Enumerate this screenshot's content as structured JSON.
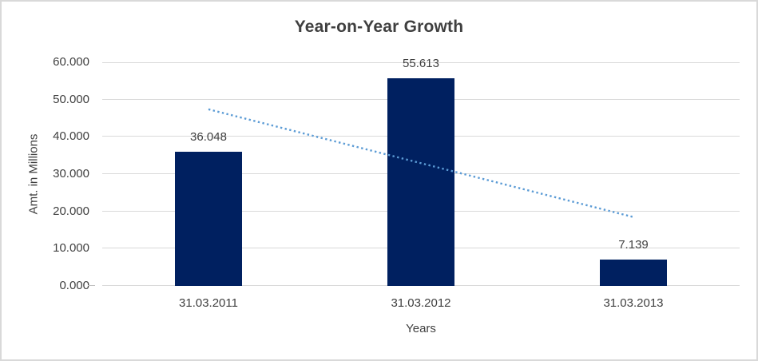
{
  "frame": {
    "background": "#ffffff",
    "border_color": "#d9d9d9"
  },
  "chart_data": {
    "type": "bar",
    "title": "Year-on-Year Growth",
    "categories": [
      "31.03.2011",
      "31.03.2012",
      "31.03.2013"
    ],
    "values": [
      36.048,
      55.613,
      7.139
    ],
    "data_labels": [
      "36.048",
      "55.613",
      "7.139"
    ],
    "xlabel": "Years",
    "ylabel": "Amt. in Millions",
    "ylim": [
      0,
      60
    ],
    "ytick_step": 10,
    "ytick_labels": [
      "0.000",
      "10.000",
      "20.000",
      "30.000",
      "40.000",
      "50.000",
      "60.000"
    ],
    "grid": true,
    "legend": "none",
    "bar_color": "#002060",
    "gridline_color": "#d9d9d9",
    "text_color": "#404040",
    "title_color": "#3f3f3f",
    "trendline": {
      "type": "linear",
      "style": "dotted",
      "color": "#5b9bd5",
      "endpoint_values": [
        47.39,
        18.48
      ]
    }
  }
}
